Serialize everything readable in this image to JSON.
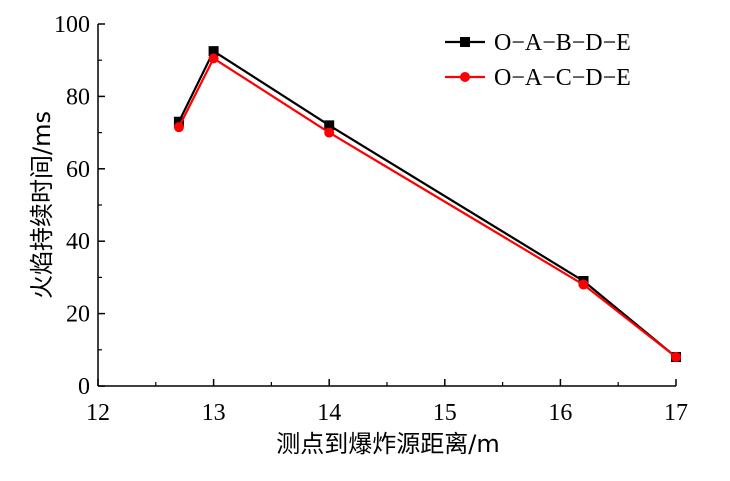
{
  "chart_data": {
    "type": "line",
    "xlabel": "测点到爆炸源距离/m",
    "ylabel": "火焰持续时间/ms",
    "xlim": [
      12,
      17
    ],
    "ylim": [
      0,
      100
    ],
    "xticks": [
      12,
      13,
      14,
      15,
      16,
      17
    ],
    "yticks": [
      0,
      20,
      40,
      60,
      80,
      100
    ],
    "xtick_labels": [
      "12",
      "13",
      "14",
      "15",
      "16",
      "17"
    ],
    "ytick_labels": [
      "0",
      "20",
      "40",
      "60",
      "80",
      "100"
    ],
    "grid": false,
    "legend_position": "top-right",
    "series": [
      {
        "name": "O−A−B−D−E",
        "color": "#000000",
        "marker": "square",
        "x": [
          12.7,
          13.0,
          14.0,
          16.2,
          17.0
        ],
        "y": [
          73.0,
          92.5,
          72.0,
          29.0,
          8.0
        ]
      },
      {
        "name": "O−A−C−D−E",
        "color": "#ff0000",
        "marker": "circle",
        "x": [
          12.7,
          13.0,
          14.0,
          16.2,
          17.0
        ],
        "y": [
          71.5,
          90.5,
          70.0,
          28.0,
          8.0
        ]
      }
    ]
  }
}
